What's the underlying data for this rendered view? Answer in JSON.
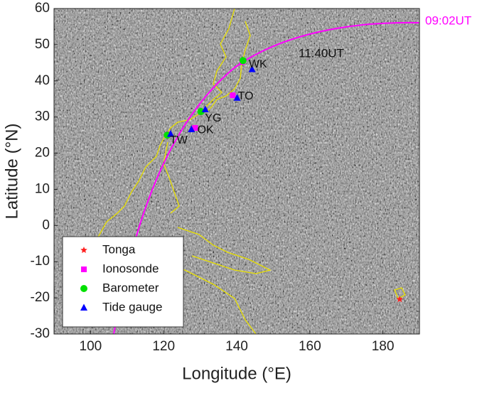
{
  "chart_data": {
    "type": "scatter",
    "xlabel": "Longitude (°E)",
    "ylabel": "Latitude (°N)",
    "xlim": [
      90,
      190
    ],
    "xticks": [
      100,
      120,
      140,
      160,
      180
    ],
    "ylim": [
      -30,
      60
    ],
    "yticks": [
      -30,
      -20,
      -10,
      0,
      10,
      20,
      30,
      40,
      50,
      60
    ],
    "series": [
      {
        "name": "Tonga",
        "color": "#ff2020",
        "marker": "star",
        "x": [
          184.6
        ],
        "y": [
          -20.4
        ]
      },
      {
        "name": "Ionosonde",
        "color": "#ff00ff",
        "marker": "square",
        "x": [
          141.5,
          138.9,
          128.6,
          121.3
        ],
        "y": [
          45.2,
          36.0,
          27.0,
          25.2
        ]
      },
      {
        "name": "Barometer",
        "color": "#00e000",
        "marker": "circle",
        "x": [
          141.7,
          130.2,
          121.0
        ],
        "y": [
          45.6,
          31.5,
          25.0
        ]
      },
      {
        "name": "Tide gauge",
        "color": "#0000ff",
        "marker": "triangle",
        "x": [
          144.2,
          140.1,
          131.4,
          127.6,
          121.9
        ],
        "y": [
          43.2,
          35.3,
          32.1,
          26.6,
          25.3
        ]
      }
    ],
    "station_labels": [
      {
        "text": "WK",
        "x": 143.3,
        "y": 44.5
      },
      {
        "text": "TO",
        "x": 140.3,
        "y": 35.7
      },
      {
        "text": "YG",
        "x": 131.3,
        "y": 29.6
      },
      {
        "text": "OK",
        "x": 129.2,
        "y": 26.3
      },
      {
        "text": "TW",
        "x": 121.7,
        "y": 23.5
      }
    ],
    "annotations": [
      "09:02UT",
      "11:40UT"
    ]
  }
}
